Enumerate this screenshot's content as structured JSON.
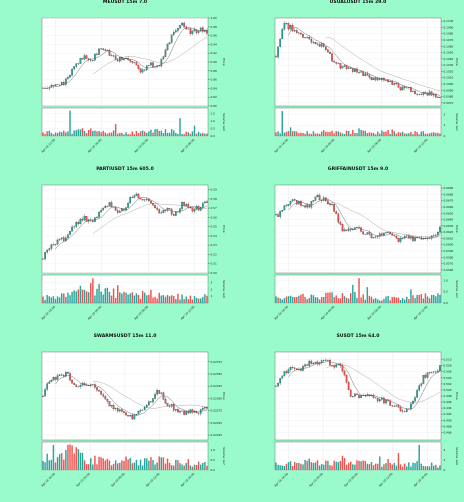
{
  "page": {
    "background": "#98fbc9"
  },
  "chart_data": [
    {
      "type": "candlestick",
      "title": "MEUSDT 15m 7.0",
      "ylabel": "Price",
      "volume_label": "Volume  1e6",
      "ylim": [
        0.8,
        1.0
      ],
      "price_ticks": [
        "1.00",
        "0.98",
        "0.96",
        "0.94",
        "0.92",
        "0.90",
        "0.88",
        "0.86",
        "0.84",
        "0.82",
        "0.80"
      ],
      "volume_ticks": [
        "1.5",
        "1.0",
        "0.5",
        "0.0"
      ],
      "vol_max": 1.75,
      "x_labels": [
        "Apr 18 12:00",
        "Apr 18 18:00",
        "Apr 19 00:00",
        "Apr 19 06:00"
      ],
      "anchors": [
        0.838,
        0.85,
        0.845,
        0.862,
        0.895,
        0.915,
        0.905,
        0.93,
        0.92,
        0.905,
        0.91,
        0.9,
        0.875,
        0.9,
        0.885,
        0.93,
        0.97,
        0.985,
        0.965,
        0.975,
        0.968
      ],
      "volume_profile": [
        0.22,
        0.25,
        0.22,
        0.3,
        0.3,
        0.4,
        0.35,
        0.25,
        0.22,
        0.28,
        0.2,
        0.22,
        0.25,
        0.3,
        0.35,
        0.4,
        0.3,
        0.25,
        0.22,
        0.2,
        0.2
      ],
      "volume_spikes": [
        [
          13,
          1.7
        ],
        [
          35,
          0.8
        ],
        [
          66,
          1.2
        ],
        [
          73,
          0.7
        ]
      ],
      "n": 80,
      "seed": 7
    },
    {
      "type": "candlestick",
      "title": "USUALUSDT 15m 29.0",
      "ylabel": "Price",
      "volume_label": "Volume  1e7",
      "ylim": [
        0.0965,
        0.1105
      ],
      "price_ticks": [
        "0.1100",
        "0.1090",
        "0.1080",
        "0.1070",
        "0.1060",
        "0.1050",
        "0.1040",
        "0.1030",
        "0.1020",
        "0.1010",
        "0.1000",
        "0.0990",
        "0.0980",
        "0.0970"
      ],
      "volume_ticks": [
        "2",
        "1",
        "0"
      ],
      "vol_max": 2.4,
      "x_labels": [
        "Apr 18 18:00",
        "Apr 19 00:00",
        "Apr 19 06:00",
        "Apr 19 12:00"
      ],
      "anchors": [
        0.1045,
        0.1095,
        0.1088,
        0.108,
        0.107,
        0.1065,
        0.106,
        0.1035,
        0.1028,
        0.1022,
        0.102,
        0.1015,
        0.1005,
        0.1012,
        0.1,
        0.0995,
        0.0992,
        0.0988,
        0.0985,
        0.0983,
        0.0976
      ],
      "volume_profile": [
        0.5,
        0.4,
        0.35,
        0.3,
        0.3,
        0.35,
        0.4,
        0.35,
        0.3,
        0.35,
        0.5,
        0.4,
        0.3,
        0.35,
        0.4,
        0.3,
        0.25,
        0.3,
        0.3,
        0.25,
        0.2
      ],
      "volume_spikes": [
        [
          3,
          2.3
        ],
        [
          7,
          0.8
        ],
        [
          56,
          0.6
        ]
      ],
      "n": 80,
      "seed": 29
    },
    {
      "type": "candlestick",
      "title": "PARTIUSDT 15m 605.0",
      "ylabel": "Price",
      "volume_label": "Volume  1e6",
      "ylim": [
        0.5,
        0.595
      ],
      "price_ticks": [
        "0.59",
        "0.58",
        "0.57",
        "0.56",
        "0.55",
        "0.54",
        "0.53",
        "0.52",
        "0.51",
        "0.50"
      ],
      "volume_ticks": [
        "3",
        "2",
        "1"
      ],
      "vol_max": 3.8,
      "x_labels": [
        "Apr 18 18:00",
        "Apr 19 00:00",
        "Apr 19 06:00",
        "Apr 19 12:00"
      ],
      "anchors": [
        0.518,
        0.53,
        0.535,
        0.54,
        0.553,
        0.56,
        0.555,
        0.565,
        0.575,
        0.565,
        0.57,
        0.585,
        0.58,
        0.575,
        0.565,
        0.57,
        0.562,
        0.575,
        0.568,
        0.57,
        0.578
      ],
      "volume_profile": [
        0.8,
        0.9,
        1.0,
        1.2,
        1.5,
        2.2,
        2.0,
        1.6,
        1.5,
        1.4,
        1.5,
        1.3,
        1.2,
        1.3,
        1.1,
        1.0,
        1.1,
        0.9,
        0.9,
        0.8,
        0.9
      ],
      "volume_spikes": [
        [
          24,
          3.6
        ],
        [
          27,
          2.8
        ],
        [
          36,
          2.6
        ]
      ],
      "n": 80,
      "seed": 605
    },
    {
      "type": "candlestick",
      "title": "GRIFFAINUSDT 15m 9.0",
      "ylabel": "Price",
      "volume_label": "Volume  1e7",
      "ylim": [
        0.0555,
        0.0695
      ],
      "price_ticks": [
        "0.0690",
        "0.0680",
        "0.0670",
        "0.0660",
        "0.0650",
        "0.0640",
        "0.0630",
        "0.0620",
        "0.0610",
        "0.0600",
        "0.0590",
        "0.0580",
        "0.0570",
        "0.0560"
      ],
      "volume_ticks": [
        "1.0",
        "0.5",
        "0.0"
      ],
      "vol_max": 1.15,
      "x_labels": [
        "Apr 18 18:00",
        "Apr 19 00:00",
        "Apr 19 06:00",
        "Apr 19 12:00"
      ],
      "anchors": [
        0.0645,
        0.066,
        0.067,
        0.0665,
        0.0662,
        0.0675,
        0.067,
        0.066,
        0.0625,
        0.0622,
        0.0625,
        0.0618,
        0.0612,
        0.062,
        0.0615,
        0.0605,
        0.0612,
        0.0608,
        0.0614,
        0.0612,
        0.0625
      ],
      "volume_profile": [
        0.2,
        0.25,
        0.22,
        0.3,
        0.25,
        0.3,
        0.35,
        0.35,
        0.4,
        0.4,
        0.3,
        0.25,
        0.22,
        0.2,
        0.22,
        0.25,
        0.3,
        0.35,
        0.3,
        0.25,
        0.3
      ],
      "volume_spikes": [
        [
          40,
          1.1
        ],
        [
          37,
          0.8
        ],
        [
          44,
          0.7
        ],
        [
          65,
          0.6
        ]
      ],
      "n": 80,
      "seed": 9
    },
    {
      "type": "candlestick",
      "title": "SWARMSUSDT 15m 11.0",
      "ylabel": "Price",
      "volume_label": "Volume  1e7",
      "ylim": [
        0.02215,
        0.02395
      ],
      "price_ticks": [
        "0.02375",
        "0.02350",
        "0.02325",
        "0.02300",
        "0.02275",
        "0.02250",
        "0.02225"
      ],
      "volume_ticks": [
        "1.0",
        "0.5",
        "0.0"
      ],
      "vol_max": 1.3,
      "x_labels": [
        "Apr 18 18:00",
        "Apr 19 00:00",
        "Apr 19 06:00",
        "Apr 19 12:00",
        "Apr 19 18:00"
      ],
      "anchors": [
        0.0231,
        0.0234,
        0.02345,
        0.0235,
        0.0232,
        0.0233,
        0.02325,
        0.0231,
        0.0229,
        0.0228,
        0.0227,
        0.0226,
        0.0228,
        0.0229,
        0.0232,
        0.0229,
        0.0228,
        0.0227,
        0.02275,
        0.0227,
        0.0228
      ],
      "volume_profile": [
        0.5,
        0.6,
        0.7,
        0.9,
        0.8,
        0.6,
        0.5,
        0.45,
        0.4,
        0.5,
        0.5,
        0.45,
        0.4,
        0.45,
        0.5,
        0.4,
        0.35,
        0.4,
        0.35,
        0.3,
        0.35
      ],
      "volume_spikes": [
        [
          5,
          1.25
        ],
        [
          11,
          1.0
        ]
      ],
      "n": 80,
      "seed": 11
    },
    {
      "type": "candlestick",
      "title": "SUSDT 15m 64.0",
      "ylabel": "Price",
      "volume_label": "Volume  1e6",
      "ylim": [
        0.4835,
        0.5125
      ],
      "price_ticks": [
        "0.510",
        "0.508",
        "0.506",
        "0.504",
        "0.502",
        "0.500",
        "0.498",
        "0.496",
        "0.494",
        "0.492",
        "0.490",
        "0.488",
        "0.486"
      ],
      "volume_ticks": [
        "4",
        "2",
        "0"
      ],
      "vol_max": 5.2,
      "x_labels": [
        "Apr 18 18:00",
        "Apr 19 00:00",
        "Apr 19 06:00",
        "Apr 19 12:00",
        "Apr 19 18:00"
      ],
      "anchors": [
        0.501,
        0.5055,
        0.508,
        0.5068,
        0.5092,
        0.5085,
        0.5098,
        0.5075,
        0.508,
        0.4985,
        0.4978,
        0.499,
        0.497,
        0.4965,
        0.4955,
        0.494,
        0.493,
        0.498,
        0.5045,
        0.506,
        0.5075
      ],
      "volume_profile": [
        1.0,
        1.2,
        1.3,
        1.2,
        1.6,
        1.4,
        1.5,
        1.3,
        2.0,
        1.8,
        1.4,
        1.2,
        1.1,
        1.0,
        1.0,
        0.9,
        1.2,
        1.4,
        1.2,
        1.0,
        1.0
      ],
      "volume_spikes": [
        [
          50,
          2.7
        ],
        [
          54,
          2.2
        ],
        [
          59,
          3.4
        ],
        [
          69,
          5.0
        ]
      ],
      "n": 80,
      "seed": 64
    }
  ]
}
